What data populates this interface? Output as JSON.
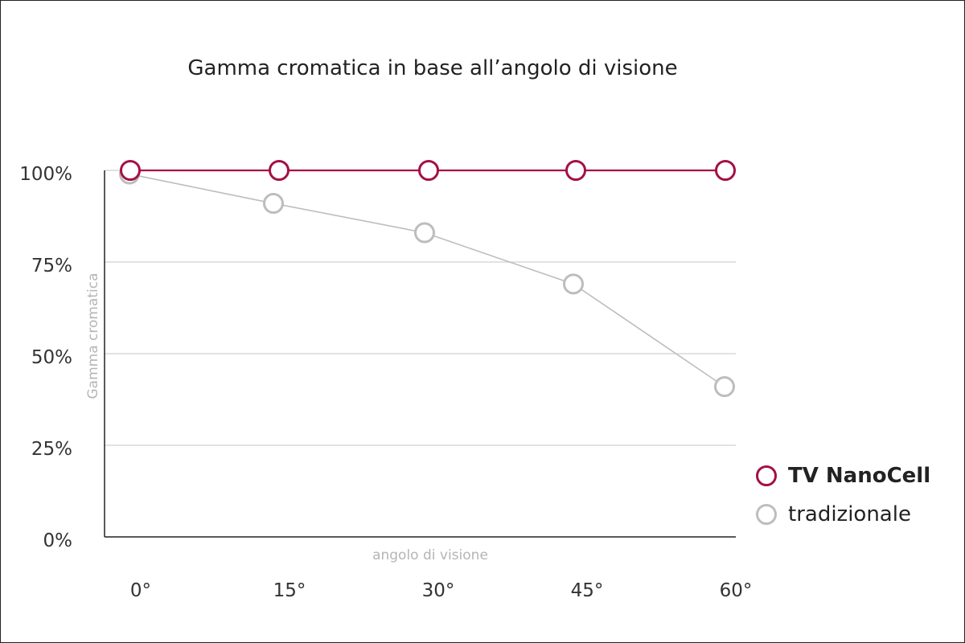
{
  "chart_data": {
    "type": "line",
    "title": "Gamma cromatica in base all’angolo di visione",
    "xlabel": "angolo di visione",
    "ylabel": "Gamma cromatica",
    "categories": [
      "0°",
      "15°",
      "30°",
      "45°",
      "60°"
    ],
    "y_ticks": [
      "0%",
      "25%",
      "50%",
      "75%",
      "100%"
    ],
    "ylim": [
      0,
      100
    ],
    "grid": true,
    "legend_position": "right",
    "series": [
      {
        "name": "TV NanoCell",
        "values": [
          100,
          100,
          100,
          100,
          100
        ],
        "color": "#a50f45",
        "bold": true
      },
      {
        "name": "tradizionale",
        "values": [
          99,
          91,
          83,
          69,
          41
        ],
        "color": "#bdbdbd",
        "bold": false
      }
    ]
  }
}
